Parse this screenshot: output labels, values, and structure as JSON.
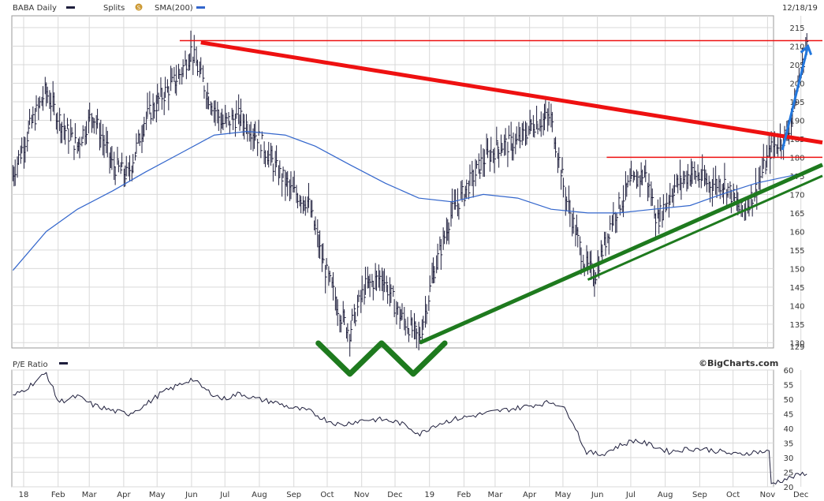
{
  "header": {
    "symbol": "BABA Daily",
    "splits": "Splits",
    "splits_marker": "S",
    "sma": "SMA(200)",
    "date": "12/18/19"
  },
  "lower": {
    "label": "P/E Ratio",
    "brand": "©BigCharts.com"
  },
  "colors": {
    "price": "#1e1e3c",
    "sma": "#3366cc",
    "resistance": "#ee1111",
    "support": "#1e7a1e",
    "arrow": "#2277dd",
    "grid": "#d9d9d9"
  },
  "chart_data": [
    {
      "type": "line",
      "title": "BABA Daily",
      "series": [
        {
          "name": "SMA(200)",
          "x": [
            "2018-01-02",
            "2018-02-01",
            "2018-03-01",
            "2018-04-02",
            "2018-05-01",
            "2018-06-01",
            "2018-07-02",
            "2018-08-01",
            "2018-09-04",
            "2018-10-01",
            "2018-11-01",
            "2018-12-03",
            "2019-01-02",
            "2019-02-01",
            "2019-03-01",
            "2019-04-01",
            "2019-05-01",
            "2019-06-03",
            "2019-07-01",
            "2019-08-01",
            "2019-09-03",
            "2019-10-01",
            "2019-11-01",
            "2019-12-02",
            "2019-12-18"
          ],
          "values": [
            149.5,
            160,
            166,
            171,
            176,
            181,
            186,
            187,
            186,
            183,
            178,
            173,
            169,
            168,
            170,
            169,
            166,
            165,
            165,
            166,
            167,
            170,
            173,
            175,
            176
          ]
        },
        {
          "name": "BABA",
          "x": [
            "2018-01-02",
            "2018-01-15",
            "2018-02-01",
            "2018-02-15",
            "2018-03-01",
            "2018-03-15",
            "2018-04-02",
            "2018-04-16",
            "2018-05-01",
            "2018-05-15",
            "2018-06-01",
            "2018-06-12",
            "2018-06-25",
            "2018-07-10",
            "2018-07-25",
            "2018-08-10",
            "2018-08-25",
            "2018-09-10",
            "2018-09-25",
            "2018-10-10",
            "2018-10-25",
            "2018-11-01",
            "2018-11-15",
            "2018-12-01",
            "2018-12-15",
            "2018-12-26",
            "2019-01-03",
            "2019-01-15",
            "2019-02-01",
            "2019-02-15",
            "2019-03-01",
            "2019-03-15",
            "2019-04-01",
            "2019-04-15",
            "2019-05-01",
            "2019-05-15",
            "2019-06-01",
            "2019-06-10",
            "2019-06-25",
            "2019-07-10",
            "2019-07-25",
            "2019-08-05",
            "2019-08-20",
            "2019-09-05",
            "2019-09-20",
            "2019-10-05",
            "2019-10-20",
            "2019-11-01",
            "2019-11-15",
            "2019-12-01",
            "2019-12-10",
            "2019-12-18"
          ],
          "values": [
            175,
            186,
            198,
            189,
            183,
            192,
            178,
            175,
            190,
            196,
            202,
            209,
            198,
            189,
            191,
            186,
            178,
            171,
            168,
            150,
            137,
            133,
            145,
            148,
            138,
            134,
            131,
            148,
            165,
            172,
            179,
            183,
            184,
            189,
            191,
            169,
            151,
            148,
            163,
            172,
            176,
            163,
            172,
            176,
            173,
            173,
            165,
            171,
            182,
            187,
            200,
            211
          ]
        }
      ],
      "annotations": {
        "resistance_levels": [
          211.5,
          180
        ],
        "downtrend_line": [
          {
            "x": "2018-06-20",
            "y": 211
          },
          {
            "x": "2019-12-31",
            "y": 184
          }
        ],
        "uptrend_line": [
          {
            "x": "2019-01-03",
            "y": 130
          },
          {
            "x": "2019-12-31",
            "y": 178
          }
        ],
        "uptrend_line_2": [
          {
            "x": "2019-06-03",
            "y": 147
          },
          {
            "x": "2019-12-31",
            "y": 175
          }
        ],
        "arrow": [
          {
            "x": "2019-11-25",
            "y": 182
          },
          {
            "x": "2019-12-18",
            "y": 210
          }
        ],
        "bottoms": [
          "2018-11-01",
          "2018-12-28"
        ]
      },
      "xlabels": [
        "18",
        "Feb",
        "Mar",
        "Apr",
        "May",
        "Jun",
        "Jul",
        "Aug",
        "Sep",
        "Oct",
        "Nov",
        "Dec",
        "19",
        "Feb",
        "Mar",
        "Apr",
        "May",
        "Jun",
        "Jul",
        "Aug",
        "Sep",
        "Oct",
        "Nov",
        "Dec"
      ],
      "yticks": [
        129,
        130,
        135,
        140,
        145,
        150,
        155,
        160,
        165,
        170,
        175,
        180,
        185,
        190,
        195,
        200,
        205,
        210,
        215
      ],
      "ylim": [
        129,
        215
      ],
      "grid": true
    },
    {
      "type": "line",
      "title": "P/E Ratio",
      "series": [
        {
          "name": "P/E Ratio",
          "x": [
            "2018-01-02",
            "2018-01-15",
            "2018-02-01",
            "2018-02-12",
            "2018-03-01",
            "2018-03-15",
            "2018-04-02",
            "2018-04-16",
            "2018-05-01",
            "2018-05-15",
            "2018-06-01",
            "2018-06-12",
            "2018-06-25",
            "2018-07-10",
            "2018-07-25",
            "2018-08-10",
            "2018-08-25",
            "2018-09-10",
            "2018-09-25",
            "2018-10-10",
            "2018-10-25",
            "2018-11-01",
            "2018-11-15",
            "2018-12-01",
            "2018-12-15",
            "2018-12-26",
            "2019-01-03",
            "2019-01-15",
            "2019-02-01",
            "2019-02-15",
            "2019-03-01",
            "2019-03-15",
            "2019-04-01",
            "2019-04-15",
            "2019-05-01",
            "2019-05-10",
            "2019-05-20",
            "2019-06-01",
            "2019-06-15",
            "2019-07-01",
            "2019-07-15",
            "2019-08-01",
            "2019-08-15",
            "2019-09-01",
            "2019-09-15",
            "2019-10-01",
            "2019-10-15",
            "2019-11-01",
            "2019-11-13",
            "2019-11-14",
            "2019-12-01",
            "2019-12-18"
          ],
          "values": [
            51,
            54,
            59,
            49,
            51,
            48,
            46,
            45,
            48,
            52,
            55,
            57,
            53,
            50,
            52,
            50,
            49,
            47,
            46,
            43,
            41,
            42,
            43,
            43,
            42,
            40,
            38,
            41,
            43,
            44,
            45,
            46,
            47,
            48,
            49,
            48,
            43,
            32,
            31,
            34,
            36,
            34,
            32,
            33,
            33,
            32,
            31,
            32,
            32,
            21,
            23,
            25
          ]
        }
      ],
      "xlabels": [
        "18",
        "Feb",
        "Mar",
        "Apr",
        "May",
        "Jun",
        "Jul",
        "Aug",
        "Sep",
        "Oct",
        "Nov",
        "Dec",
        "19",
        "Feb",
        "Mar",
        "Apr",
        "May",
        "Jun",
        "Jul",
        "Aug",
        "Sep",
        "Oct",
        "Nov",
        "Dec"
      ],
      "yticks": [
        20,
        25,
        30,
        35,
        40,
        45,
        50,
        55,
        60
      ],
      "ylim": [
        20,
        60
      ],
      "grid": true
    }
  ]
}
